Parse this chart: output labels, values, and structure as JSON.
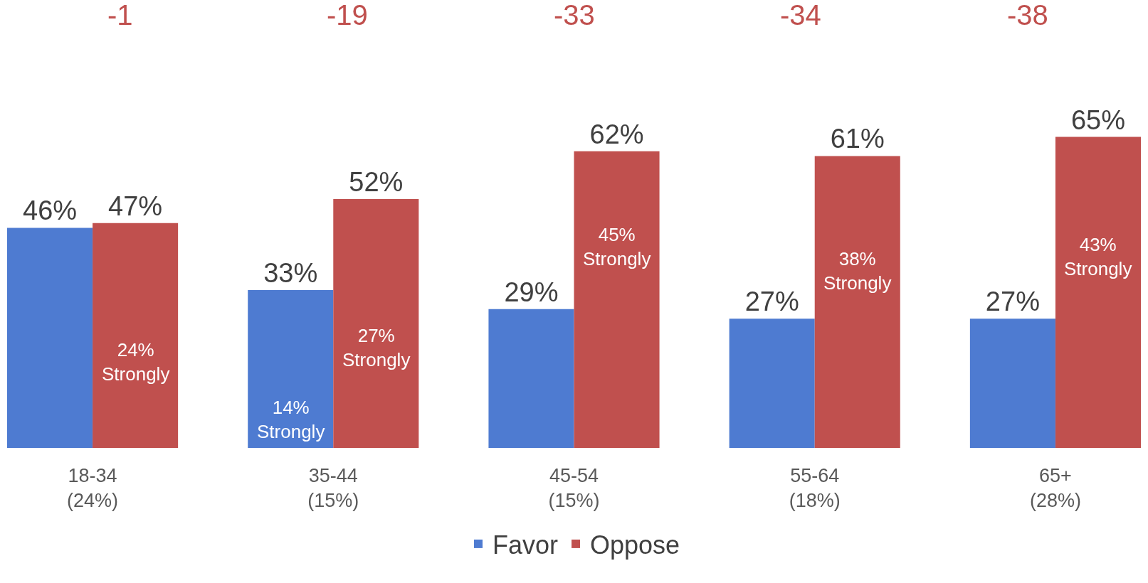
{
  "chart_data": {
    "type": "bar",
    "categories": [
      "18-34\n(24%)",
      "35-44\n(15%)",
      "45-54\n(15%)",
      "55-64\n(18%)",
      "65+\n(28%)"
    ],
    "series": [
      {
        "name": "Favor",
        "color": "#4e7bd1",
        "values": [
          46,
          33,
          29,
          27,
          27
        ],
        "value_labels": [
          "46%",
          "33%",
          "29%",
          "27%",
          "27%"
        ]
      },
      {
        "name": "Oppose",
        "color": "#c0504e",
        "values": [
          47,
          52,
          62,
          61,
          65
        ],
        "value_labels": [
          "47%",
          "52%",
          "62%",
          "61%",
          "65%"
        ]
      }
    ],
    "annotations": [
      "-1",
      "-19",
      "-33",
      "-34",
      "-38",
      {
        "text": "24%\nStrongly",
        "x": "18-34\n(24%)",
        "y": 18
      },
      {
        "text": "14%\nStrongly",
        "x": "35-44\n(15%)",
        "y": 6
      },
      {
        "text": "27%\nStrongly",
        "x": "35-44\n(15%)",
        "y": 21
      },
      {
        "text": "45%\nStrongly",
        "x": "45-54\n(15%)",
        "y": 42
      },
      {
        "text": "38%\nStrongly",
        "x": "55-64\n(18%)",
        "y": 37
      },
      {
        "text": "43%\nStrongly",
        "x": "65+\n(28%)",
        "y": 40
      }
    ],
    "legend": "bottom",
    "grid": false
  }
}
